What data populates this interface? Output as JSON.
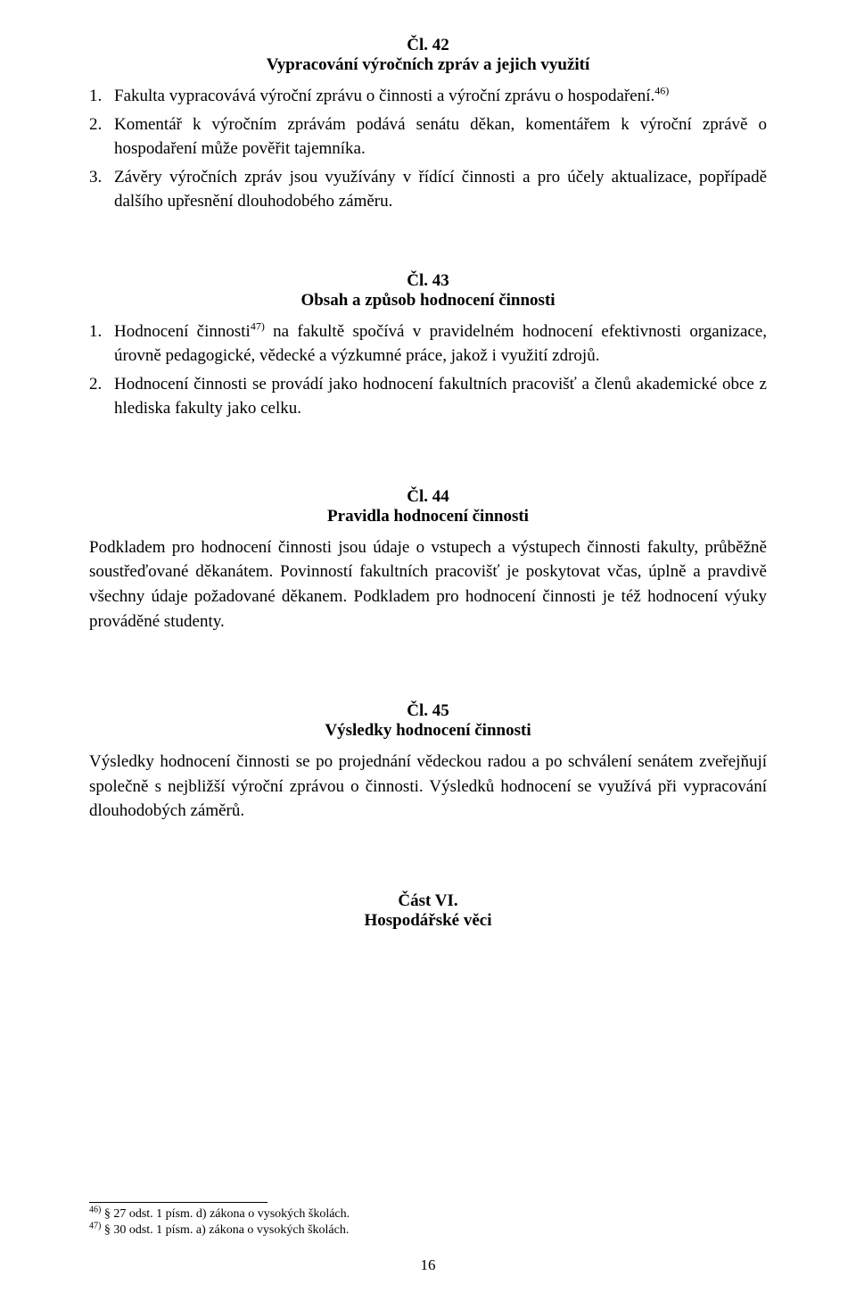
{
  "article42": {
    "num": "Čl. 42",
    "title": "Vypracování výročních zpráv a jejich využití",
    "items": [
      {
        "pre": "Fakulta vypracovává výroční zprávu o činnosti a výroční zprávu o hospodaření.",
        "sup": "46)",
        "post": ""
      },
      {
        "pre": "Komentář k výročním zprávám podává senátu děkan, komentářem k výroční zprávě o hospodaření může pověřit tajemníka.",
        "sup": "",
        "post": ""
      },
      {
        "pre": "Závěry výročních zpráv jsou využívány v řídící činnosti a pro účely aktualizace, popřípadě dalšího upřesnění dlouhodobého záměru.",
        "sup": "",
        "post": ""
      }
    ]
  },
  "article43": {
    "num": "Čl. 43",
    "title": "Obsah a způsob hodnocení činnosti",
    "items": [
      {
        "pre": "Hodnocení činnosti",
        "sup": "47)",
        "post": " na fakultě spočívá v pravidelném hodnocení efektivnosti organizace, úrovně pedagogické, vědecké a výzkumné práce, jakož i využití zdrojů."
      },
      {
        "pre": "Hodnocení činnosti se provádí jako hodnocení fakultních pracovišť a členů akademické obce z hlediska fakulty jako celku.",
        "sup": "",
        "post": ""
      }
    ]
  },
  "article44": {
    "num": "Čl. 44",
    "title": "Pravidla hodnocení činnosti",
    "body": "Podkladem pro hodnocení činnosti jsou údaje o vstupech a výstupech činnosti fakulty, průběžně soustřeďované děkanátem. Povinností fakultních pracovišť je poskytovat včas, úplně a pravdivě všechny údaje požadované děkanem. Podkladem pro hodnocení činnosti je též hodnocení výuky prováděné studenty."
  },
  "article45": {
    "num": "Čl. 45",
    "title": "Výsledky hodnocení činnosti",
    "body": "Výsledky hodnocení činnosti se po projednání vědeckou radou a po schválení senátem zveřejňují společně s nejbližší výroční zprávou o činnosti. Výsledků hodnocení se využívá při vypracování dlouhodobých záměrů."
  },
  "part6": {
    "num": "Část VI.",
    "title": "Hospodářské věci"
  },
  "footnotes": {
    "f46": {
      "sup": "46)",
      "text": " § 27 odst. 1 písm. d) zákona o vysokých školách."
    },
    "f47": {
      "sup": "47)",
      "text": " § 30 odst. 1 písm. a) zákona o vysokých školách."
    }
  },
  "page_number": "16"
}
